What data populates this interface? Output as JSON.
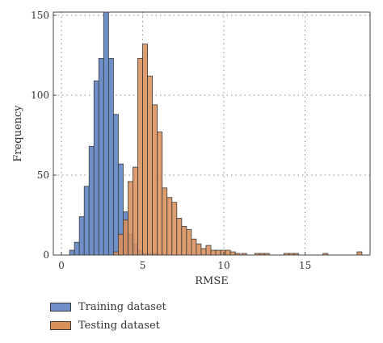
{
  "chart_data": {
    "type": "bar",
    "xlabel": "RMSE",
    "ylabel": "Frequency",
    "xlim": [
      -0.5,
      19
    ],
    "ylim": [
      0,
      152
    ],
    "xticks": [
      0,
      5,
      10,
      15
    ],
    "yticks": [
      0,
      50,
      100,
      150
    ],
    "grid": true,
    "legend_position": "bottom-left, below plot",
    "bin_width": 0.3,
    "series": [
      {
        "name": "Training dataset",
        "color": "#6f8fc9",
        "bin_starts": [
          0.5,
          0.8,
          1.1,
          1.4,
          1.7,
          2.0,
          2.3,
          2.6,
          2.9,
          3.2,
          3.5,
          3.8,
          4.1,
          4.4,
          4.7,
          5.0,
          5.3,
          5.6
        ],
        "values": [
          3,
          8,
          24,
          43,
          68,
          109,
          123,
          152,
          123,
          88,
          57,
          27,
          13,
          7,
          3,
          1,
          1,
          1
        ]
      },
      {
        "name": "Testing dataset",
        "color": "#d98f5a",
        "bin_starts": [
          3.2,
          3.5,
          3.8,
          4.1,
          4.4,
          4.7,
          5.0,
          5.3,
          5.6,
          5.9,
          6.2,
          6.5,
          6.8,
          7.1,
          7.4,
          7.7,
          8.0,
          8.3,
          8.6,
          8.9,
          9.2,
          9.5,
          9.8,
          10.1,
          10.4,
          10.7,
          11.1,
          11.9,
          12.2,
          12.5,
          13.7,
          14.0,
          14.3,
          16.1,
          18.2
        ],
        "values": [
          2,
          13,
          22,
          46,
          55,
          123,
          132,
          112,
          94,
          77,
          42,
          36,
          33,
          23,
          18,
          16,
          10,
          7,
          4,
          6,
          3,
          3,
          3,
          3,
          2,
          1,
          1,
          1,
          1,
          1,
          1,
          1,
          1,
          1,
          2
        ]
      }
    ]
  }
}
